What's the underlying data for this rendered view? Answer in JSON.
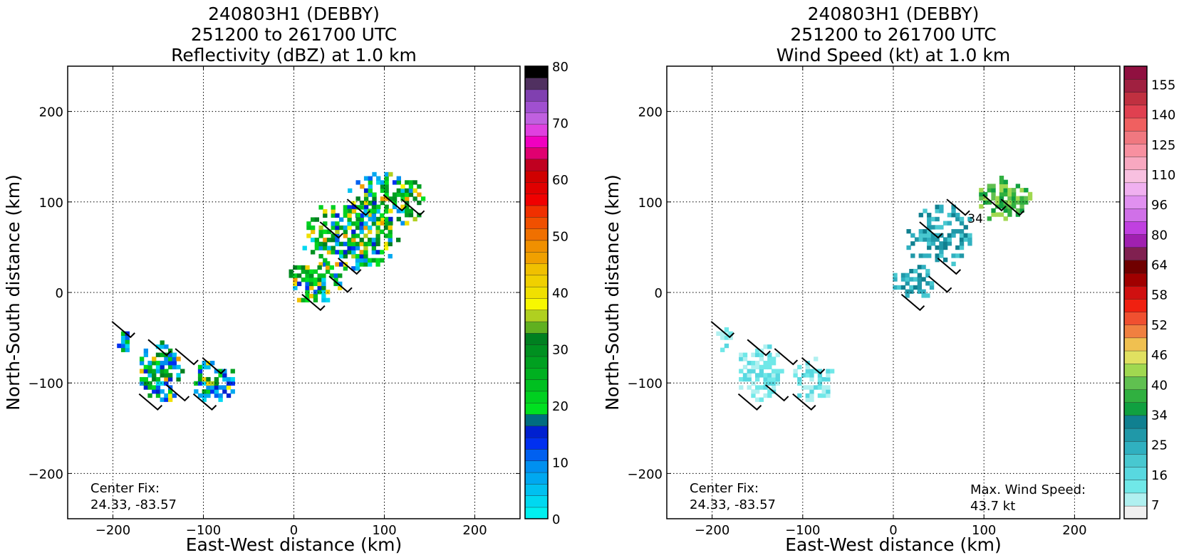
{
  "chart_data": [
    {
      "type": "heatmap",
      "title": [
        "240803H1 (DEBBY)",
        "251200 to 261700 UTC",
        "Reflectivity (dBZ) at 1.0 km"
      ],
      "xlabel": "East-West distance (km)",
      "ylabel": "North-South distance (km)",
      "xlim": [
        -250,
        250
      ],
      "ylim": [
        -250,
        250
      ],
      "xticks": [
        -200,
        -100,
        0,
        100,
        200
      ],
      "yticks": [
        -200,
        -100,
        0,
        100,
        200
      ],
      "grid": true,
      "annotation": [
        "Center Fix:",
        "24.33, -83.57"
      ],
      "colorbar": {
        "min": 0,
        "max": 80,
        "tick_labels": [
          "0",
          "10",
          "20",
          "30",
          "40",
          "50",
          "60",
          "70",
          "80"
        ],
        "colors": [
          "#00f0f0",
          "#00d8f0",
          "#00c0f0",
          "#00a8f0",
          "#0090f0",
          "#0060f0",
          "#0030f0",
          "#0020d0",
          "#006c80",
          "#00e020",
          "#00d020",
          "#00c020",
          "#00b020",
          "#00a020",
          "#009020",
          "#008020",
          "#60b020",
          "#b0d020",
          "#f8f800",
          "#f0e000",
          "#f0d000",
          "#f0c000",
          "#f0a000",
          "#f09000",
          "#f07000",
          "#f05000",
          "#f03000",
          "#f00000",
          "#e00000",
          "#d00000",
          "#c00020",
          "#e00070",
          "#f000c0",
          "#e040e0",
          "#c060e0",
          "#a050d0",
          "#8040b0",
          "#503060",
          "#000000"
        ]
      },
      "barb_note": "barbs shown on grid",
      "clusters": [
        {
          "x": 60,
          "y": 60,
          "rx": 55,
          "ry": 40
        },
        {
          "x": 100,
          "y": 100,
          "rx": 45,
          "ry": 30
        },
        {
          "x": 20,
          "y": 10,
          "rx": 30,
          "ry": 25
        },
        {
          "x": -90,
          "y": -100,
          "rx": 25,
          "ry": 25
        },
        {
          "x": -150,
          "y": -90,
          "rx": 25,
          "ry": 35
        },
        {
          "x": -190,
          "y": -55,
          "rx": 10,
          "ry": 15
        }
      ]
    },
    {
      "type": "heatmap",
      "title": [
        "240803H1 (DEBBY)",
        "251200 to 261700 UTC",
        "Wind Speed (kt) at 1.0 km"
      ],
      "xlabel": "East-West distance (km)",
      "ylabel": "North-South distance (km)",
      "xlim": [
        -250,
        250
      ],
      "ylim": [
        -250,
        250
      ],
      "xticks": [
        -200,
        -100,
        0,
        100,
        200
      ],
      "yticks": [
        -200,
        -100,
        0,
        100,
        200
      ],
      "grid": true,
      "annotation": [
        "Center Fix:",
        "24.33, -83.57"
      ],
      "max_wind": [
        "Max. Wind Speed:",
        "43.7 kt"
      ],
      "contour_label": "34",
      "colorbar": {
        "tick_labels": [
          "7",
          "16",
          "25",
          "34",
          "40",
          "46",
          "52",
          "58",
          "64",
          "80",
          "96",
          "110",
          "125",
          "140",
          "155"
        ],
        "colors": [
          "#f0f0f0",
          "#b0f0f0",
          "#70e8e8",
          "#58d8e0",
          "#48c8d0",
          "#30b0c0",
          "#2098a8",
          "#108090",
          "#10a040",
          "#30b040",
          "#60c050",
          "#a0d850",
          "#e0e060",
          "#f0c050",
          "#f08040",
          "#f05030",
          "#f02010",
          "#d01010",
          "#a00000",
          "#700000",
          "#802050",
          "#a020b0",
          "#c040e0",
          "#d070e8",
          "#e090f0",
          "#f0b0f0",
          "#f8c0e0",
          "#f8a8c0",
          "#f890a0",
          "#f07880",
          "#f06060",
          "#e04050",
          "#c03040",
          "#a02040",
          "#901040"
        ]
      },
      "clusters": [
        {
          "x": 50,
          "y": 60,
          "rx": 40,
          "ry": 35
        },
        {
          "x": 120,
          "y": 100,
          "rx": 30,
          "ry": 25
        },
        {
          "x": 20,
          "y": 10,
          "rx": 25,
          "ry": 20
        },
        {
          "x": -90,
          "y": -100,
          "rx": 25,
          "ry": 25
        },
        {
          "x": -150,
          "y": -90,
          "rx": 25,
          "ry": 35
        },
        {
          "x": -190,
          "y": -55,
          "rx": 10,
          "ry": 15
        }
      ]
    }
  ]
}
